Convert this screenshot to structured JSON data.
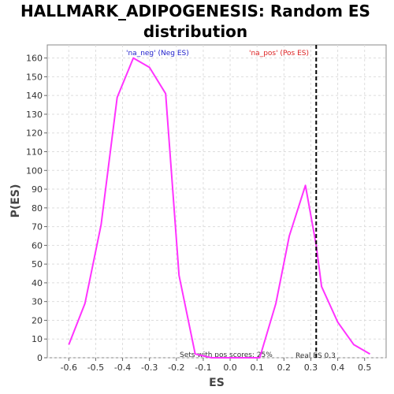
{
  "chart_data": {
    "type": "line",
    "title_line1": "HALLMARK_ADIPOGENESIS: Random ES",
    "title_line2": "distribution",
    "xlabel": "ES",
    "ylabel": "P(ES)",
    "xlim": [
      -0.68,
      0.58
    ],
    "ylim": [
      0,
      167
    ],
    "x_ticks": [
      -0.6,
      -0.5,
      -0.4,
      -0.3,
      -0.2,
      -0.1,
      0.0,
      0.1,
      0.2,
      0.3,
      0.4,
      0.5
    ],
    "y_ticks": [
      0,
      10,
      20,
      30,
      40,
      50,
      60,
      70,
      80,
      90,
      100,
      110,
      120,
      130,
      140,
      150,
      160
    ],
    "grid": true,
    "series": [
      {
        "color": "#ff33ff",
        "points": [
          [
            -0.6,
            7
          ],
          [
            -0.54,
            29
          ],
          [
            -0.48,
            71
          ],
          [
            -0.42,
            139
          ],
          [
            -0.36,
            160
          ],
          [
            -0.3,
            155
          ],
          [
            -0.24,
            141
          ],
          [
            -0.19,
            44
          ],
          [
            -0.13,
            2
          ],
          [
            -0.07,
            0
          ],
          [
            0.0,
            0
          ],
          [
            0.05,
            0
          ],
          [
            0.11,
            0
          ],
          [
            0.17,
            29
          ],
          [
            0.22,
            65
          ],
          [
            0.28,
            92
          ],
          [
            0.32,
            60
          ],
          [
            0.34,
            38
          ],
          [
            0.4,
            19
          ],
          [
            0.46,
            7
          ],
          [
            0.52,
            2
          ]
        ]
      }
    ],
    "real_es": {
      "value": 0.32,
      "label": "Real ES 0.3",
      "color": "#000000"
    },
    "annotations": {
      "neg_label": "'na_neg' (Neg ES)",
      "neg_color": "#2222cc",
      "pos_label": "'na_pos' (Pos ES)",
      "pos_color": "#dd2222",
      "pos_scores": "Sets with pos scores: 25%"
    }
  }
}
